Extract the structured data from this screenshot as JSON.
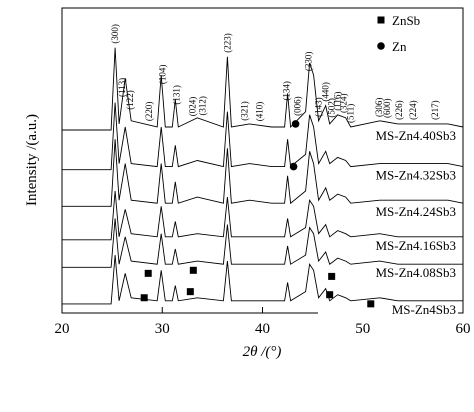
{
  "chart_data": {
    "type": "line",
    "xlabel": "2θ /(°)",
    "ylabel": "Intensity /(a.u.)",
    "xlim": [
      20,
      60
    ],
    "xticks": [
      20,
      30,
      40,
      50,
      60
    ],
    "ylim": [
      0,
      100
    ],
    "x": [
      20,
      24.9,
      25.3,
      25.7,
      26.3,
      26.9,
      29.5,
      29.9,
      30.3,
      31.0,
      31.3,
      31.6,
      33.5,
      36.1,
      36.5,
      36.9,
      38.7,
      40.9,
      42.2,
      42.5,
      42.8,
      44.3,
      44.7,
      45.1,
      45.6,
      46.3,
      46.7,
      47.5,
      48.3,
      48.8,
      51.7,
      53.5,
      56.0,
      58.5,
      60
    ],
    "series": [
      {
        "name": "MS-Zn4.40Sb3",
        "color": "#000000",
        "values": [
          60,
          60,
          87,
          62,
          77,
          63,
          61,
          78,
          61,
          61,
          70,
          61,
          64,
          61,
          84,
          61,
          62,
          61,
          61,
          72,
          61,
          66,
          82,
          78,
          63,
          68,
          62,
          65,
          64,
          61,
          63,
          62,
          62,
          62,
          61
        ]
      },
      {
        "name": "MS-Zn4.32Sb3",
        "color": "#000000",
        "values": [
          47,
          47,
          69,
          49,
          61,
          49,
          48,
          61,
          48,
          48,
          55,
          48,
          50,
          48,
          66,
          48,
          49,
          48,
          48,
          57,
          48,
          52,
          65,
          61,
          49,
          53,
          49,
          51,
          50,
          48,
          49,
          49,
          49,
          49,
          48
        ]
      },
      {
        "name": "MS-Zn4.24Sb3",
        "color": "#000000",
        "values": [
          35,
          35,
          57,
          37,
          49,
          37,
          36,
          49,
          36,
          36,
          43,
          36,
          38,
          36,
          54,
          36,
          37,
          36,
          36,
          45,
          36,
          40,
          53,
          49,
          37,
          41,
          37,
          39,
          38,
          36,
          37,
          37,
          37,
          37,
          36
        ]
      },
      {
        "name": "MS-Zn4.16Sb3",
        "color": "#000000",
        "values": [
          24,
          24,
          40,
          25,
          34,
          26,
          25,
          35,
          25,
          25,
          30,
          25,
          26,
          25,
          38,
          25,
          25,
          25,
          25,
          31,
          25,
          28,
          37,
          35,
          26,
          29,
          25,
          27,
          26,
          25,
          26,
          25,
          25,
          25,
          25
        ]
      },
      {
        "name": "MS-Zn4.08Sb3",
        "color": "#000000",
        "values": [
          15,
          15,
          31,
          16,
          25,
          17,
          16,
          26,
          16,
          16,
          21,
          16,
          17,
          16,
          29,
          16,
          16,
          16,
          16,
          22,
          16,
          19,
          28,
          26,
          17,
          20,
          16,
          18,
          17,
          16,
          17,
          16,
          16,
          16,
          16
        ]
      },
      {
        "name": "MS-Zn4Sb3",
        "color": "#000000",
        "values": [
          3,
          3,
          19,
          4,
          13,
          5,
          4,
          14,
          4,
          4,
          9,
          4,
          5,
          4,
          17,
          4,
          4,
          4,
          4,
          10,
          4,
          7,
          16,
          14,
          5,
          8,
          4,
          6,
          5,
          4,
          5,
          4,
          4,
          4,
          4
        ]
      }
    ],
    "legend": [
      {
        "symbol": "square",
        "label": "ZnSb"
      },
      {
        "symbol": "circle",
        "label": "Zn"
      }
    ],
    "markers": [
      {
        "symbol": "square",
        "x": 28.6,
        "y": 13
      },
      {
        "symbol": "square",
        "x": 33.1,
        "y": 14
      },
      {
        "symbol": "square",
        "x": 46.9,
        "y": 12
      },
      {
        "symbol": "square",
        "x": 28.2,
        "y": 5
      },
      {
        "symbol": "square",
        "x": 32.8,
        "y": 7
      },
      {
        "symbol": "square",
        "x": 46.7,
        "y": 6
      },
      {
        "symbol": "square",
        "x": 50.8,
        "y": 3
      },
      {
        "symbol": "circle",
        "x": 43.3,
        "y": 62
      },
      {
        "symbol": "circle",
        "x": 43.1,
        "y": 48
      }
    ],
    "peak_labels": [
      {
        "text": "(300)",
        "x": 25.3
      },
      {
        "text": "(113)",
        "x": 26.0
      },
      {
        "text": "(122)",
        "x": 26.8
      },
      {
        "text": "(220)",
        "x": 28.7
      },
      {
        "text": "(104)",
        "x": 30.0
      },
      {
        "text": "(131)",
        "x": 31.4
      },
      {
        "text": "(024)",
        "x": 33.0
      },
      {
        "text": "(312)",
        "x": 34.0
      },
      {
        "text": "(223)",
        "x": 36.5
      },
      {
        "text": "(321)",
        "x": 38.2
      },
      {
        "text": "(410)",
        "x": 39.7
      },
      {
        "text": "(134)",
        "x": 42.4
      },
      {
        "text": "(006)",
        "x": 43.5
      },
      {
        "text": "(330)",
        "x": 44.6
      },
      {
        "text": "(143)",
        "x": 45.6
      },
      {
        "text": "(440)",
        "x": 46.3
      },
      {
        "text": "(502)",
        "x": 46.9
      },
      {
        "text": "(116)",
        "x": 47.5
      },
      {
        "text": "(324)",
        "x": 48.1
      },
      {
        "text": "(511)",
        "x": 48.8
      },
      {
        "text": "(306)",
        "x": 51.6
      },
      {
        "text": "(600)",
        "x": 52.4
      },
      {
        "text": "(226)",
        "x": 53.6
      },
      {
        "text": "(224)",
        "x": 55.0
      },
      {
        "text": "(217)",
        "x": 57.2
      }
    ]
  }
}
